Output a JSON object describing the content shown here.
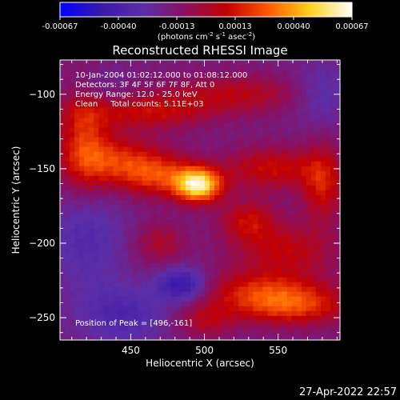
{
  "chart_data": {
    "type": "heatmap",
    "title": "Reconstructed RHESSI Image",
    "xlabel": "Heliocentric X (arcsec)",
    "ylabel": "Heliocentric Y (arcsec)",
    "xlim": [
      402,
      592
    ],
    "ylim": [
      -265,
      -77
    ],
    "x_ticks": [
      450,
      500,
      550
    ],
    "y_ticks": [
      -250,
      -200,
      -150,
      -100
    ],
    "colorbar": {
      "ticks": [
        "-0.00067",
        "-0.00040",
        "-0.00013",
        "0.00013",
        "0.00040",
        "0.00067"
      ],
      "unit_main": "(photons cm",
      "unit_exp1": "-2",
      "unit_mid": " s",
      "unit_exp2": "-1",
      "unit_end": " asec",
      "unit_exp3": "-2",
      "unit_close": ")",
      "stops": [
        "#0000ff",
        "#3a1aa8",
        "#5b2ea8",
        "#8a1060",
        "#c20000",
        "#ff5a00",
        "#ffd21e",
        "#ffffff"
      ]
    },
    "info_lines": [
      "10-Jan-2004 01:02:12.000 to 01:08:12.000",
      "Detectors: 3F 4F 5F 6F 7F 8F, Att 0",
      "Energy Range: 12.0 - 25.0 keV",
      "Clean     Total counts: 5.11E+03"
    ],
    "peak_label": "Position of Peak = [496,-161]",
    "peak": [
      496,
      -161
    ],
    "timestamp": "27-Apr-2022 22:57",
    "features": [
      {
        "x": 496,
        "y": -161,
        "amp": 0.00072,
        "sx": 11,
        "sy": 8
      },
      {
        "x": 470,
        "y": -155,
        "amp": 0.00032,
        "sx": 18,
        "sy": 10
      },
      {
        "x": 440,
        "y": -145,
        "amp": 0.00034,
        "sx": 22,
        "sy": 12
      },
      {
        "x": 418,
        "y": -128,
        "amp": 0.0003,
        "sx": 12,
        "sy": 28
      },
      {
        "x": 460,
        "y": -112,
        "amp": 0.00026,
        "sx": 30,
        "sy": 8
      },
      {
        "x": 520,
        "y": -100,
        "amp": 0.00022,
        "sx": 35,
        "sy": 9
      },
      {
        "x": 545,
        "y": -150,
        "amp": 0.00028,
        "sx": 22,
        "sy": 10
      },
      {
        "x": 580,
        "y": -160,
        "amp": 0.0003,
        "sx": 10,
        "sy": 18
      },
      {
        "x": 530,
        "y": -185,
        "amp": 0.00026,
        "sx": 14,
        "sy": 10
      },
      {
        "x": 555,
        "y": -205,
        "amp": 0.00024,
        "sx": 24,
        "sy": 12
      },
      {
        "x": 540,
        "y": -232,
        "amp": 0.0003,
        "sx": 30,
        "sy": 10
      },
      {
        "x": 560,
        "y": -243,
        "amp": 0.00032,
        "sx": 28,
        "sy": 9
      },
      {
        "x": 500,
        "y": -252,
        "amp": 0.0002,
        "sx": 14,
        "sy": 8
      },
      {
        "x": 470,
        "y": -200,
        "amp": 0.00018,
        "sx": 12,
        "sy": 10
      },
      {
        "x": 420,
        "y": -195,
        "amp": -0.00018,
        "sx": 18,
        "sy": 25
      },
      {
        "x": 485,
        "y": -228,
        "amp": -0.00034,
        "sx": 12,
        "sy": 8
      },
      {
        "x": 445,
        "y": -248,
        "amp": -0.0002,
        "sx": 22,
        "sy": 14
      },
      {
        "x": 580,
        "y": -100,
        "amp": -0.00016,
        "sx": 14,
        "sy": 14
      },
      {
        "x": 425,
        "y": -95,
        "amp": -0.00012,
        "sx": 14,
        "sy": 10
      }
    ]
  }
}
